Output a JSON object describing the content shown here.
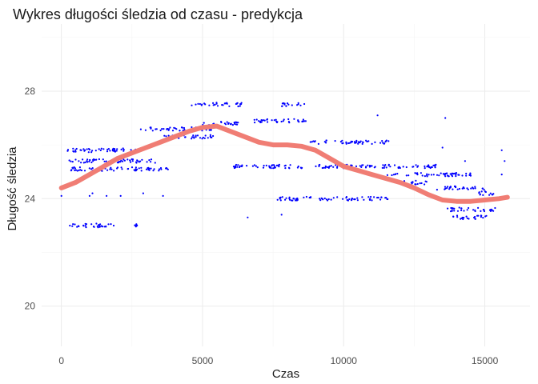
{
  "chart_data": {
    "type": "scatter",
    "title": "Wykres długości śledzia od czasu - predykcja",
    "xlabel": "Czas",
    "ylabel": "Długość śledzia",
    "xlim": [
      -700,
      16600
    ],
    "ylim": [
      18.5,
      30.5
    ],
    "xticks": [
      0,
      5000,
      10000,
      15000
    ],
    "xtick_labels": [
      "0",
      "5000",
      "10000",
      "15000"
    ],
    "yticks": [
      20,
      24,
      28
    ],
    "ytick_labels": [
      "20",
      "24",
      "28"
    ],
    "grid": true,
    "legend": "none",
    "colors": {
      "points": "#0000ff",
      "fit": "#f07d74"
    },
    "series": [
      {
        "type": "scatter",
        "note_style": "dense point bands",
        "bands": [
          {
            "x0": 100,
            "x1": 1900,
            "y": 23.0
          },
          {
            "x0": 2600,
            "x1": 2700,
            "y": 23.0
          },
          {
            "x0": 200,
            "x1": 2700,
            "y": 25.8
          },
          {
            "x0": 200,
            "x1": 3400,
            "y": 25.4
          },
          {
            "x0": 300,
            "x1": 3800,
            "y": 25.1
          },
          {
            "x0": 2800,
            "x1": 5400,
            "y": 26.6
          },
          {
            "x0": 3500,
            "x1": 5500,
            "y": 26.3
          },
          {
            "x0": 4600,
            "x1": 6400,
            "y": 27.5
          },
          {
            "x0": 4900,
            "x1": 6300,
            "y": 26.8
          },
          {
            "x0": 6100,
            "x1": 8800,
            "y": 25.2
          },
          {
            "x0": 6700,
            "x1": 8700,
            "y": 26.9
          },
          {
            "x0": 7800,
            "x1": 8700,
            "y": 27.5
          },
          {
            "x0": 8800,
            "x1": 11600,
            "y": 26.1
          },
          {
            "x0": 9000,
            "x1": 13400,
            "y": 25.2
          },
          {
            "x0": 11800,
            "x1": 13000,
            "y": 24.6
          },
          {
            "x0": 7600,
            "x1": 11600,
            "y": 24.0
          },
          {
            "x0": 11500,
            "x1": 14500,
            "y": 24.9
          },
          {
            "x0": 13300,
            "x1": 15000,
            "y": 24.4
          },
          {
            "x0": 13600,
            "x1": 15400,
            "y": 23.6
          },
          {
            "x0": 13800,
            "x1": 15100,
            "y": 23.3
          },
          {
            "x0": 14700,
            "x1": 15400,
            "y": 24.2
          }
        ],
        "points": [
          [
            0,
            24.1
          ],
          [
            1000,
            24.1
          ],
          [
            1100,
            24.2
          ],
          [
            1600,
            24.1
          ],
          [
            2100,
            24.1
          ],
          [
            2900,
            24.2
          ],
          [
            3600,
            24.1
          ],
          [
            6600,
            23.3
          ],
          [
            7800,
            23.4
          ],
          [
            11200,
            27.1
          ],
          [
            13600,
            27.0
          ],
          [
            13500,
            25.9
          ],
          [
            14300,
            25.4
          ],
          [
            15600,
            25.8
          ],
          [
            15700,
            25.4
          ],
          [
            15600,
            24.9
          ]
        ]
      },
      {
        "type": "line",
        "x": [
          0,
          500,
          1000,
          1500,
          2000,
          2500,
          3000,
          3500,
          4000,
          4500,
          5000,
          5500,
          6000,
          6500,
          7000,
          7500,
          8000,
          8500,
          9000,
          9500,
          10000,
          10500,
          11000,
          11500,
          12000,
          12500,
          13000,
          13500,
          14000,
          14500,
          15000,
          15500,
          15800
        ],
        "y": [
          24.4,
          24.6,
          24.9,
          25.2,
          25.5,
          25.7,
          25.9,
          26.1,
          26.3,
          26.5,
          26.65,
          26.7,
          26.5,
          26.3,
          26.1,
          26.0,
          26.0,
          25.95,
          25.8,
          25.5,
          25.2,
          25.05,
          24.9,
          24.75,
          24.6,
          24.4,
          24.15,
          23.95,
          23.9,
          23.9,
          23.95,
          24.0,
          24.05
        ]
      }
    ]
  }
}
